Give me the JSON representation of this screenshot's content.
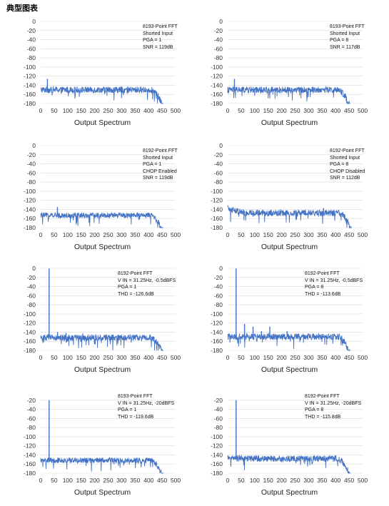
{
  "page": {
    "title": "典型图表"
  },
  "styles": {
    "series_color": "#4472C4",
    "grid_color": "#d9d9d9"
  },
  "chart_data": [
    {
      "type": "line",
      "xlabel": "Output Spectrum",
      "xlim": [
        0,
        500
      ],
      "ylim": [
        -180,
        0
      ],
      "xticks": [
        0,
        50,
        100,
        150,
        200,
        250,
        300,
        350,
        400,
        450,
        500
      ],
      "yticks": [
        0,
        -20,
        -40,
        -60,
        -80,
        -100,
        -120,
        -140,
        -160,
        -180
      ],
      "annotation": [
        "8193-Point FFT",
        "Shorted Input",
        "PGA = 1",
        "SNR = 119dB"
      ],
      "noise": {
        "floor": -150,
        "spread": 7,
        "rolloff_start": 405,
        "rolloff_end": 455
      },
      "spikes": [
        {
          "x": 25,
          "y": -126
        }
      ]
    },
    {
      "type": "line",
      "xlabel": "Output Spectrum",
      "xlim": [
        0,
        500
      ],
      "ylim": [
        -180,
        0
      ],
      "xticks": [
        0,
        50,
        100,
        150,
        200,
        250,
        300,
        350,
        400,
        450,
        500
      ],
      "yticks": [
        0,
        -20,
        -40,
        -60,
        -80,
        -100,
        -120,
        -140,
        -160,
        -180
      ],
      "annotation": [
        "8193-Point FFT",
        "Shorted Input",
        "PGA = 8",
        "SNR = 117dB"
      ],
      "noise": {
        "floor": -150,
        "spread": 7,
        "rolloff_start": 405,
        "rolloff_end": 455
      },
      "spikes": [
        {
          "x": 25,
          "y": -126
        }
      ]
    },
    {
      "type": "line",
      "xlabel": "Output Spectrum",
      "xlim": [
        0,
        500
      ],
      "ylim": [
        -180,
        0
      ],
      "xticks": [
        0,
        50,
        100,
        150,
        200,
        250,
        300,
        350,
        400,
        450,
        500
      ],
      "yticks": [
        0,
        -20,
        -40,
        -60,
        -80,
        -100,
        -120,
        -140,
        -160,
        -180
      ],
      "annotation": [
        "8192-Point FFT",
        "Shorted Input",
        "PGA = 1",
        "CHOP Enabled",
        "SNR = 119dB"
      ],
      "noise": {
        "floor": -153,
        "spread": 6,
        "rolloff_start": 405,
        "rolloff_end": 455
      },
      "spikes": [
        {
          "x": 62,
          "y": -135
        }
      ]
    },
    {
      "type": "line",
      "xlabel": "Output Spectrum",
      "xlim": [
        0,
        500
      ],
      "ylim": [
        -180,
        0
      ],
      "xticks": [
        0,
        50,
        100,
        150,
        200,
        250,
        300,
        350,
        400,
        450,
        500
      ],
      "yticks": [
        0,
        -20,
        -40,
        -60,
        -80,
        -100,
        -120,
        -140,
        -160,
        -180
      ],
      "annotation": [
        "8192-Point FFT",
        "Shorted Input",
        "PGA = 8",
        "CHOP Disabled",
        "SNR = 112dB"
      ],
      "noise": {
        "floor": -148,
        "spread": 7,
        "rolloff_start": 410,
        "rolloff_end": 460,
        "lowfreq_boost": 10
      },
      "spikes": [
        {
          "x": 355,
          "y": -137
        }
      ]
    },
    {
      "type": "line",
      "xlabel": "Output Spectrum",
      "xlim": [
        0,
        500
      ],
      "ylim": [
        -180,
        0
      ],
      "xticks": [
        0,
        50,
        100,
        150,
        200,
        250,
        300,
        350,
        400,
        450,
        500
      ],
      "yticks": [
        0,
        -20,
        -40,
        -60,
        -80,
        -100,
        -120,
        -140,
        -160,
        -180
      ],
      "annotation": [
        "8192-Point FFT",
        "V IN = 31.25Hz, -0.5dBFS",
        "PGA = 1",
        "THD = -126.6dB"
      ],
      "noise": {
        "floor": -152,
        "spread": 7,
        "rolloff_start": 405,
        "rolloff_end": 455
      },
      "spikes": [
        {
          "x": 31.25,
          "y": -0.5
        },
        {
          "x": 62.5,
          "y": -140
        },
        {
          "x": 94,
          "y": -142
        },
        {
          "x": 156,
          "y": -143
        }
      ]
    },
    {
      "type": "line",
      "xlabel": "Output Spectrum",
      "xlim": [
        0,
        500
      ],
      "ylim": [
        -180,
        0
      ],
      "xticks": [
        0,
        50,
        100,
        150,
        200,
        250,
        300,
        350,
        400,
        450,
        500
      ],
      "yticks": [
        0,
        -20,
        -40,
        -60,
        -80,
        -100,
        -120,
        -140,
        -160,
        -180
      ],
      "annotation": [
        "8192-Point FFT",
        "V IN = 31.25Hz, -0.5dBFS",
        "PGA = 8",
        "THD = -113.6dB"
      ],
      "noise": {
        "floor": -150,
        "spread": 7,
        "rolloff_start": 405,
        "rolloff_end": 455
      },
      "spikes": [
        {
          "x": 31.25,
          "y": -0.5
        },
        {
          "x": 62.5,
          "y": -122
        },
        {
          "x": 94,
          "y": -128
        },
        {
          "x": 125,
          "y": -138
        },
        {
          "x": 156,
          "y": -128
        },
        {
          "x": 220,
          "y": -138
        }
      ]
    },
    {
      "type": "line",
      "xlabel": "Output Spectrum",
      "xlim": [
        0,
        500
      ],
      "ylim": [
        -180,
        0
      ],
      "xticks": [
        0,
        50,
        100,
        150,
        200,
        250,
        300,
        350,
        400,
        450,
        500
      ],
      "yticks": [
        -20,
        -40,
        -60,
        -80,
        -100,
        -120,
        -140,
        -160,
        -180
      ],
      "annotation": [
        "8193-Point FFT",
        "V IN = 31.25Hz, -20dBFS",
        "PGA = 1",
        "THD = -119.6dB"
      ],
      "noise": {
        "floor": -152,
        "spread": 6,
        "rolloff_start": 405,
        "rolloff_end": 455
      },
      "spikes": [
        {
          "x": 31.25,
          "y": -20
        }
      ]
    },
    {
      "type": "line",
      "xlabel": "Output Spectrum",
      "xlim": [
        0,
        500
      ],
      "ylim": [
        -180,
        0
      ],
      "xticks": [
        0,
        50,
        100,
        150,
        200,
        250,
        300,
        350,
        400,
        450,
        500
      ],
      "yticks": [
        -20,
        -40,
        -60,
        -80,
        -100,
        -120,
        -140,
        -160,
        -180
      ],
      "annotation": [
        "8192-Point FFT",
        "V IN = 31.25Hz, -20dBFS",
        "PGA = 8",
        "THD = -115.8dB"
      ],
      "noise": {
        "floor": -148,
        "spread": 7,
        "rolloff_start": 405,
        "rolloff_end": 455
      },
      "spikes": [
        {
          "x": 31.25,
          "y": -20
        }
      ]
    }
  ]
}
